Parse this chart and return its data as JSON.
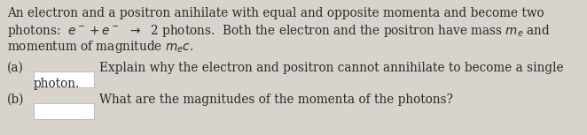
{
  "background_color": "#d8d4cc",
  "text_color": "#2a2a2a",
  "box_color": "#ffffff",
  "fig_width": 6.62,
  "fig_height": 1.53,
  "dpi": 100,
  "font_size": 9.8,
  "line1": "An electron and a positron anihilate with equal and opposite momenta and become two",
  "line2a": "photons:  ",
  "line2b": "$e^- + e^-$",
  "line2c": " $\\rightarrow$ 2 photons.  Both the electron and the positron have mass $m_e$ and",
  "line3": "momentum of magnitude $m_ec$.",
  "label_a": "(a)",
  "text_a1": "Explain why the electron and positron cannot annihilate to become a single",
  "text_a2": "photon.",
  "label_b": "(b)",
  "text_b": "What are the magnitudes of the momenta of the photons?"
}
